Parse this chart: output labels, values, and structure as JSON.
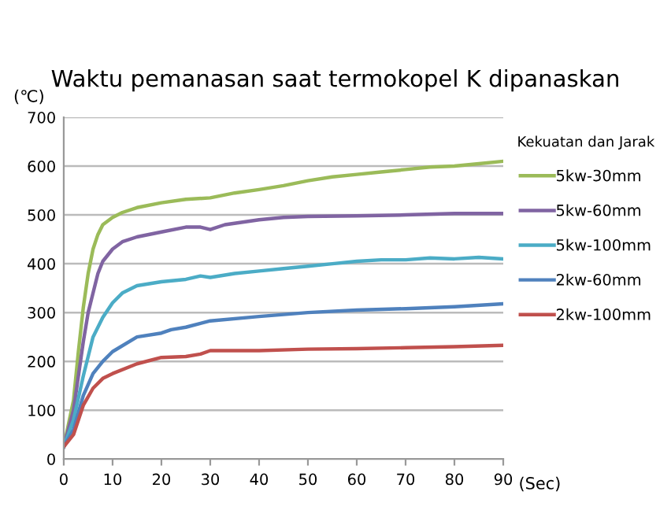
{
  "chart_data": {
    "type": "line",
    "title": "Waktu pemanasan saat termokopel K dipanaskan",
    "ylabel": "(℃)",
    "xlabel": "(Sec)",
    "legend_title": "Kekuatan dan Jarak",
    "legend": "right",
    "grid": "y",
    "marker": "none",
    "line_style": "solid",
    "xlim": [
      0,
      90
    ],
    "xticks": [
      0,
      10,
      20,
      30,
      40,
      50,
      60,
      70,
      80,
      90
    ],
    "ylim": [
      0,
      700
    ],
    "yticks": [
      0,
      100,
      200,
      300,
      400,
      500,
      600,
      700
    ],
    "series": [
      {
        "name": "5kw-30mm",
        "color": "#9bbb59",
        "x": [
          0,
          2,
          3,
          4,
          5,
          6,
          7,
          8,
          10,
          12,
          15,
          20,
          25,
          30,
          35,
          40,
          45,
          50,
          55,
          60,
          65,
          70,
          75,
          80,
          85,
          90
        ],
        "values": [
          25,
          120,
          220,
          310,
          380,
          430,
          460,
          480,
          495,
          505,
          515,
          525,
          532,
          535,
          545,
          552,
          560,
          570,
          578,
          583,
          588,
          593,
          598,
          600,
          605,
          610
        ]
      },
      {
        "name": "5kw-60mm",
        "color": "#8064a2",
        "x": [
          0,
          2,
          3,
          4,
          5,
          6,
          7,
          8,
          10,
          12,
          15,
          20,
          25,
          28,
          30,
          33,
          40,
          45,
          50,
          60,
          70,
          80,
          90
        ],
        "values": [
          25,
          100,
          170,
          240,
          300,
          340,
          380,
          405,
          430,
          445,
          455,
          465,
          475,
          475,
          470,
          480,
          490,
          495,
          497,
          498,
          500,
          503,
          503
        ]
      },
      {
        "name": "5kw-100mm",
        "color": "#4bacc6",
        "x": [
          0,
          2,
          4,
          5,
          6,
          8,
          10,
          12,
          15,
          20,
          25,
          28,
          30,
          35,
          40,
          45,
          50,
          55,
          60,
          65,
          70,
          75,
          80,
          85,
          90
        ],
        "values": [
          25,
          80,
          170,
          210,
          250,
          290,
          320,
          340,
          355,
          363,
          368,
          375,
          372,
          380,
          385,
          390,
          395,
          400,
          405,
          408,
          408,
          412,
          410,
          413,
          410
        ]
      },
      {
        "name": "2kw-60mm",
        "color": "#4f81bd",
        "x": [
          0,
          2,
          4,
          6,
          8,
          10,
          15,
          20,
          22,
          25,
          30,
          40,
          50,
          60,
          70,
          80,
          90
        ],
        "values": [
          25,
          60,
          130,
          175,
          200,
          220,
          250,
          258,
          265,
          270,
          283,
          292,
          300,
          305,
          308,
          312,
          318
        ]
      },
      {
        "name": "2kw-100mm",
        "color": "#c0504d",
        "x": [
          0,
          2,
          4,
          6,
          8,
          10,
          15,
          20,
          25,
          28,
          30,
          40,
          50,
          60,
          70,
          80,
          90
        ],
        "values": [
          25,
          50,
          110,
          145,
          165,
          175,
          195,
          208,
          210,
          215,
          222,
          222,
          225,
          226,
          228,
          230,
          233
        ]
      }
    ]
  }
}
